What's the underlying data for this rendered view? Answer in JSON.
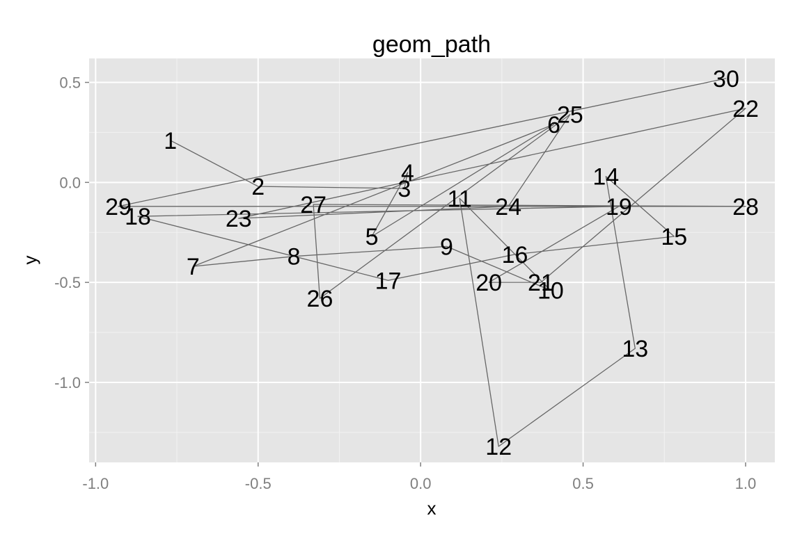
{
  "chart_data": {
    "type": "line",
    "title": "geom_path",
    "xlabel": "x",
    "ylabel": "y",
    "xlim": [
      -1.02,
      1.09
    ],
    "ylim": [
      -1.4,
      0.62
    ],
    "x_ticks": [
      {
        "value": -1.0,
        "label": "-1.0"
      },
      {
        "value": -0.5,
        "label": "-0.5"
      },
      {
        "value": 0.0,
        "label": "0.0"
      },
      {
        "value": 0.5,
        "label": "0.5"
      },
      {
        "value": 1.0,
        "label": "1.0"
      }
    ],
    "y_ticks": [
      {
        "value": 0.5,
        "label": "0.5"
      },
      {
        "value": 0.0,
        "label": "0.0"
      },
      {
        "value": -0.5,
        "label": "-0.5"
      },
      {
        "value": -1.0,
        "label": "-1.0"
      }
    ],
    "x_minor": [
      -0.75,
      -0.25,
      0.25,
      0.75
    ],
    "y_minor": [
      0.25,
      -0.25,
      -0.75,
      -1.25
    ],
    "grid": true,
    "legend": "none",
    "colors": {
      "panel": "#e5e5e5",
      "grid_major": "#ffffff",
      "grid_minor": "#f2f2f2",
      "path": "#666666",
      "label": "#000000",
      "tick_text": "#7f7f7f"
    },
    "points": [
      {
        "label": "1",
        "x": -0.77,
        "y": 0.21
      },
      {
        "label": "2",
        "x": -0.5,
        "y": -0.02
      },
      {
        "label": "3",
        "x": -0.05,
        "y": -0.03
      },
      {
        "label": "4",
        "x": -0.04,
        "y": 0.05
      },
      {
        "label": "5",
        "x": -0.15,
        "y": -0.27
      },
      {
        "label": "6",
        "x": 0.41,
        "y": 0.29
      },
      {
        "label": "7",
        "x": -0.7,
        "y": -0.42
      },
      {
        "label": "8",
        "x": -0.39,
        "y": -0.37
      },
      {
        "label": "9",
        "x": 0.08,
        "y": -0.32
      },
      {
        "label": "10",
        "x": 0.4,
        "y": -0.54
      },
      {
        "label": "11",
        "x": 0.12,
        "y": -0.08
      },
      {
        "label": "12",
        "x": 0.24,
        "y": -1.32
      },
      {
        "label": "13",
        "x": 0.66,
        "y": -0.83
      },
      {
        "label": "14",
        "x": 0.57,
        "y": 0.03
      },
      {
        "label": "15",
        "x": 0.78,
        "y": -0.27
      },
      {
        "label": "16",
        "x": 0.29,
        "y": -0.36
      },
      {
        "label": "17",
        "x": -0.1,
        "y": -0.49
      },
      {
        "label": "18",
        "x": -0.87,
        "y": -0.17
      },
      {
        "label": "19",
        "x": 0.61,
        "y": -0.12
      },
      {
        "label": "20",
        "x": 0.21,
        "y": -0.5
      },
      {
        "label": "21",
        "x": 0.37,
        "y": -0.5
      },
      {
        "label": "22",
        "x": 1.0,
        "y": 0.37
      },
      {
        "label": "23",
        "x": -0.56,
        "y": -0.18
      },
      {
        "label": "24",
        "x": 0.27,
        "y": -0.12
      },
      {
        "label": "25",
        "x": 0.46,
        "y": 0.34
      },
      {
        "label": "26",
        "x": -0.31,
        "y": -0.58
      },
      {
        "label": "27",
        "x": -0.33,
        "y": -0.11
      },
      {
        "label": "28",
        "x": 1.0,
        "y": -0.12
      },
      {
        "label": "29",
        "x": -0.93,
        "y": -0.12
      },
      {
        "label": "30",
        "x": 0.94,
        "y": 0.52
      }
    ]
  }
}
